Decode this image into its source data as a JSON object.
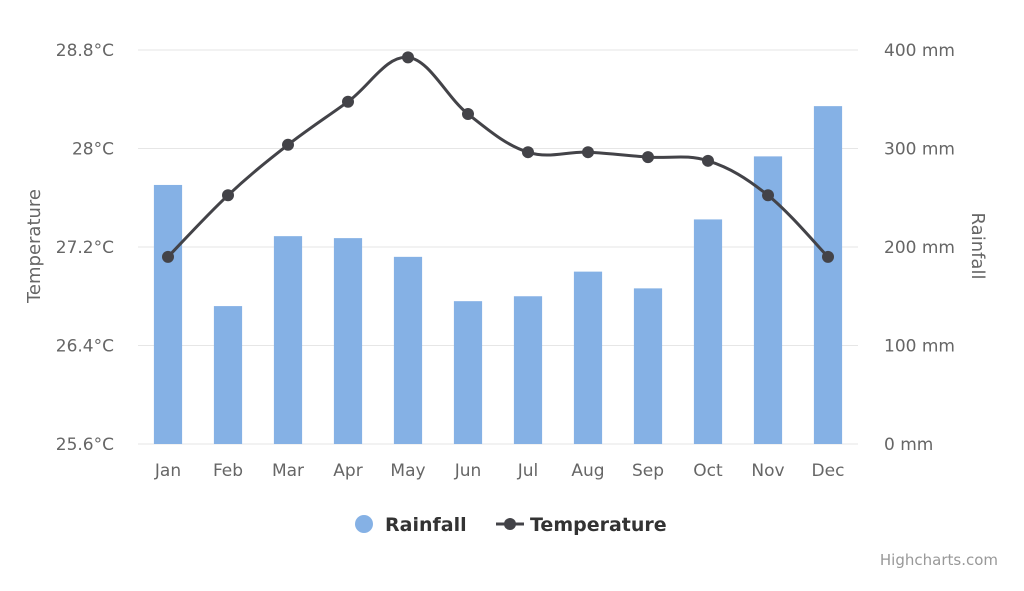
{
  "chart_data": {
    "type": "bar",
    "combo": "bar+line",
    "categories": [
      "Jan",
      "Feb",
      "Mar",
      "Apr",
      "May",
      "Jun",
      "Jul",
      "Aug",
      "Sep",
      "Oct",
      "Nov",
      "Dec"
    ],
    "series": [
      {
        "name": "Rainfall",
        "type": "bar",
        "axis": "right",
        "color": "#85b1e5",
        "values": [
          263,
          140,
          211,
          209,
          190,
          145,
          150,
          175,
          158,
          228,
          292,
          343
        ]
      },
      {
        "name": "Temperature",
        "type": "line",
        "axis": "left",
        "color": "#434348",
        "values": [
          27.12,
          27.62,
          28.03,
          28.38,
          28.74,
          28.28,
          27.97,
          27.97,
          27.93,
          27.9,
          27.62,
          27.12
        ]
      }
    ],
    "y_left": {
      "title": "Temperature",
      "range": [
        25.6,
        28.8
      ],
      "ticks": [
        "28.8°C",
        "28°C",
        "27.2°C",
        "26.4°C",
        "25.6°C"
      ]
    },
    "y_right": {
      "title": "Rainfall",
      "range": [
        0,
        400
      ],
      "ticks": [
        "400 mm",
        "300 mm",
        "200 mm",
        "100 mm",
        "0 mm"
      ]
    },
    "grid": true,
    "legend_position": "bottom-center",
    "credits": "Highcharts.com"
  }
}
